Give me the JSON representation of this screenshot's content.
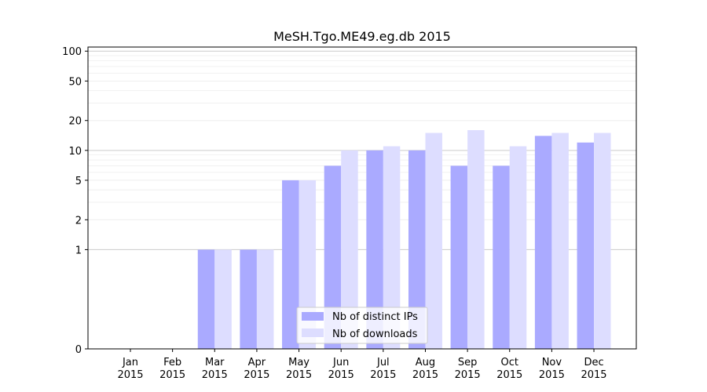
{
  "chart_data": {
    "type": "bar",
    "title": "MeSH.Tgo.ME49.eg.db 2015",
    "xlabel": "",
    "ylabel": "",
    "y_scale": "symlog",
    "ylim": [
      0,
      110
    ],
    "y_ticks": [
      0,
      1,
      2,
      5,
      10,
      20,
      50,
      100
    ],
    "grid": true,
    "legend_position": "lower-center",
    "categories": [
      {
        "month": "Jan",
        "year": "2015"
      },
      {
        "month": "Feb",
        "year": "2015"
      },
      {
        "month": "Mar",
        "year": "2015"
      },
      {
        "month": "Apr",
        "year": "2015"
      },
      {
        "month": "May",
        "year": "2015"
      },
      {
        "month": "Jun",
        "year": "2015"
      },
      {
        "month": "Jul",
        "year": "2015"
      },
      {
        "month": "Aug",
        "year": "2015"
      },
      {
        "month": "Sep",
        "year": "2015"
      },
      {
        "month": "Oct",
        "year": "2015"
      },
      {
        "month": "Nov",
        "year": "2015"
      },
      {
        "month": "Dec",
        "year": "2015"
      }
    ],
    "series": [
      {
        "name": "Nb of distinct IPs",
        "color": "#aaaaff",
        "values": [
          0,
          0,
          1,
          1,
          5,
          7,
          10,
          10,
          7,
          7,
          14,
          12
        ]
      },
      {
        "name": "Nb of downloads",
        "color": "#ddddff",
        "values": [
          0,
          0,
          1,
          1,
          5,
          10,
          11,
          15,
          16,
          11,
          15,
          15
        ]
      }
    ]
  }
}
